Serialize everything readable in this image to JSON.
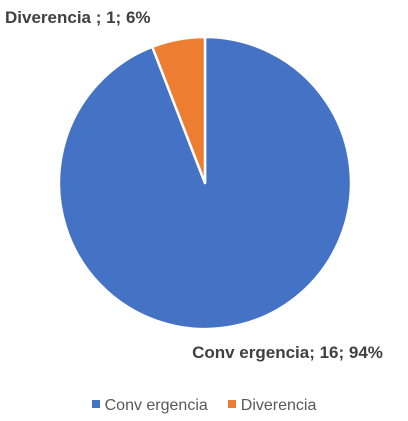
{
  "chart_data": {
    "type": "pie",
    "categories": [
      "Conv ergencia",
      "Diverencia"
    ],
    "values": [
      16,
      1
    ],
    "value_labels": [
      "Conv ergencia; 16; 94%",
      "Diverencia ; 1; 6%"
    ],
    "colors": [
      "#4472c4",
      "#ed7d31"
    ],
    "legend": "bottom"
  }
}
